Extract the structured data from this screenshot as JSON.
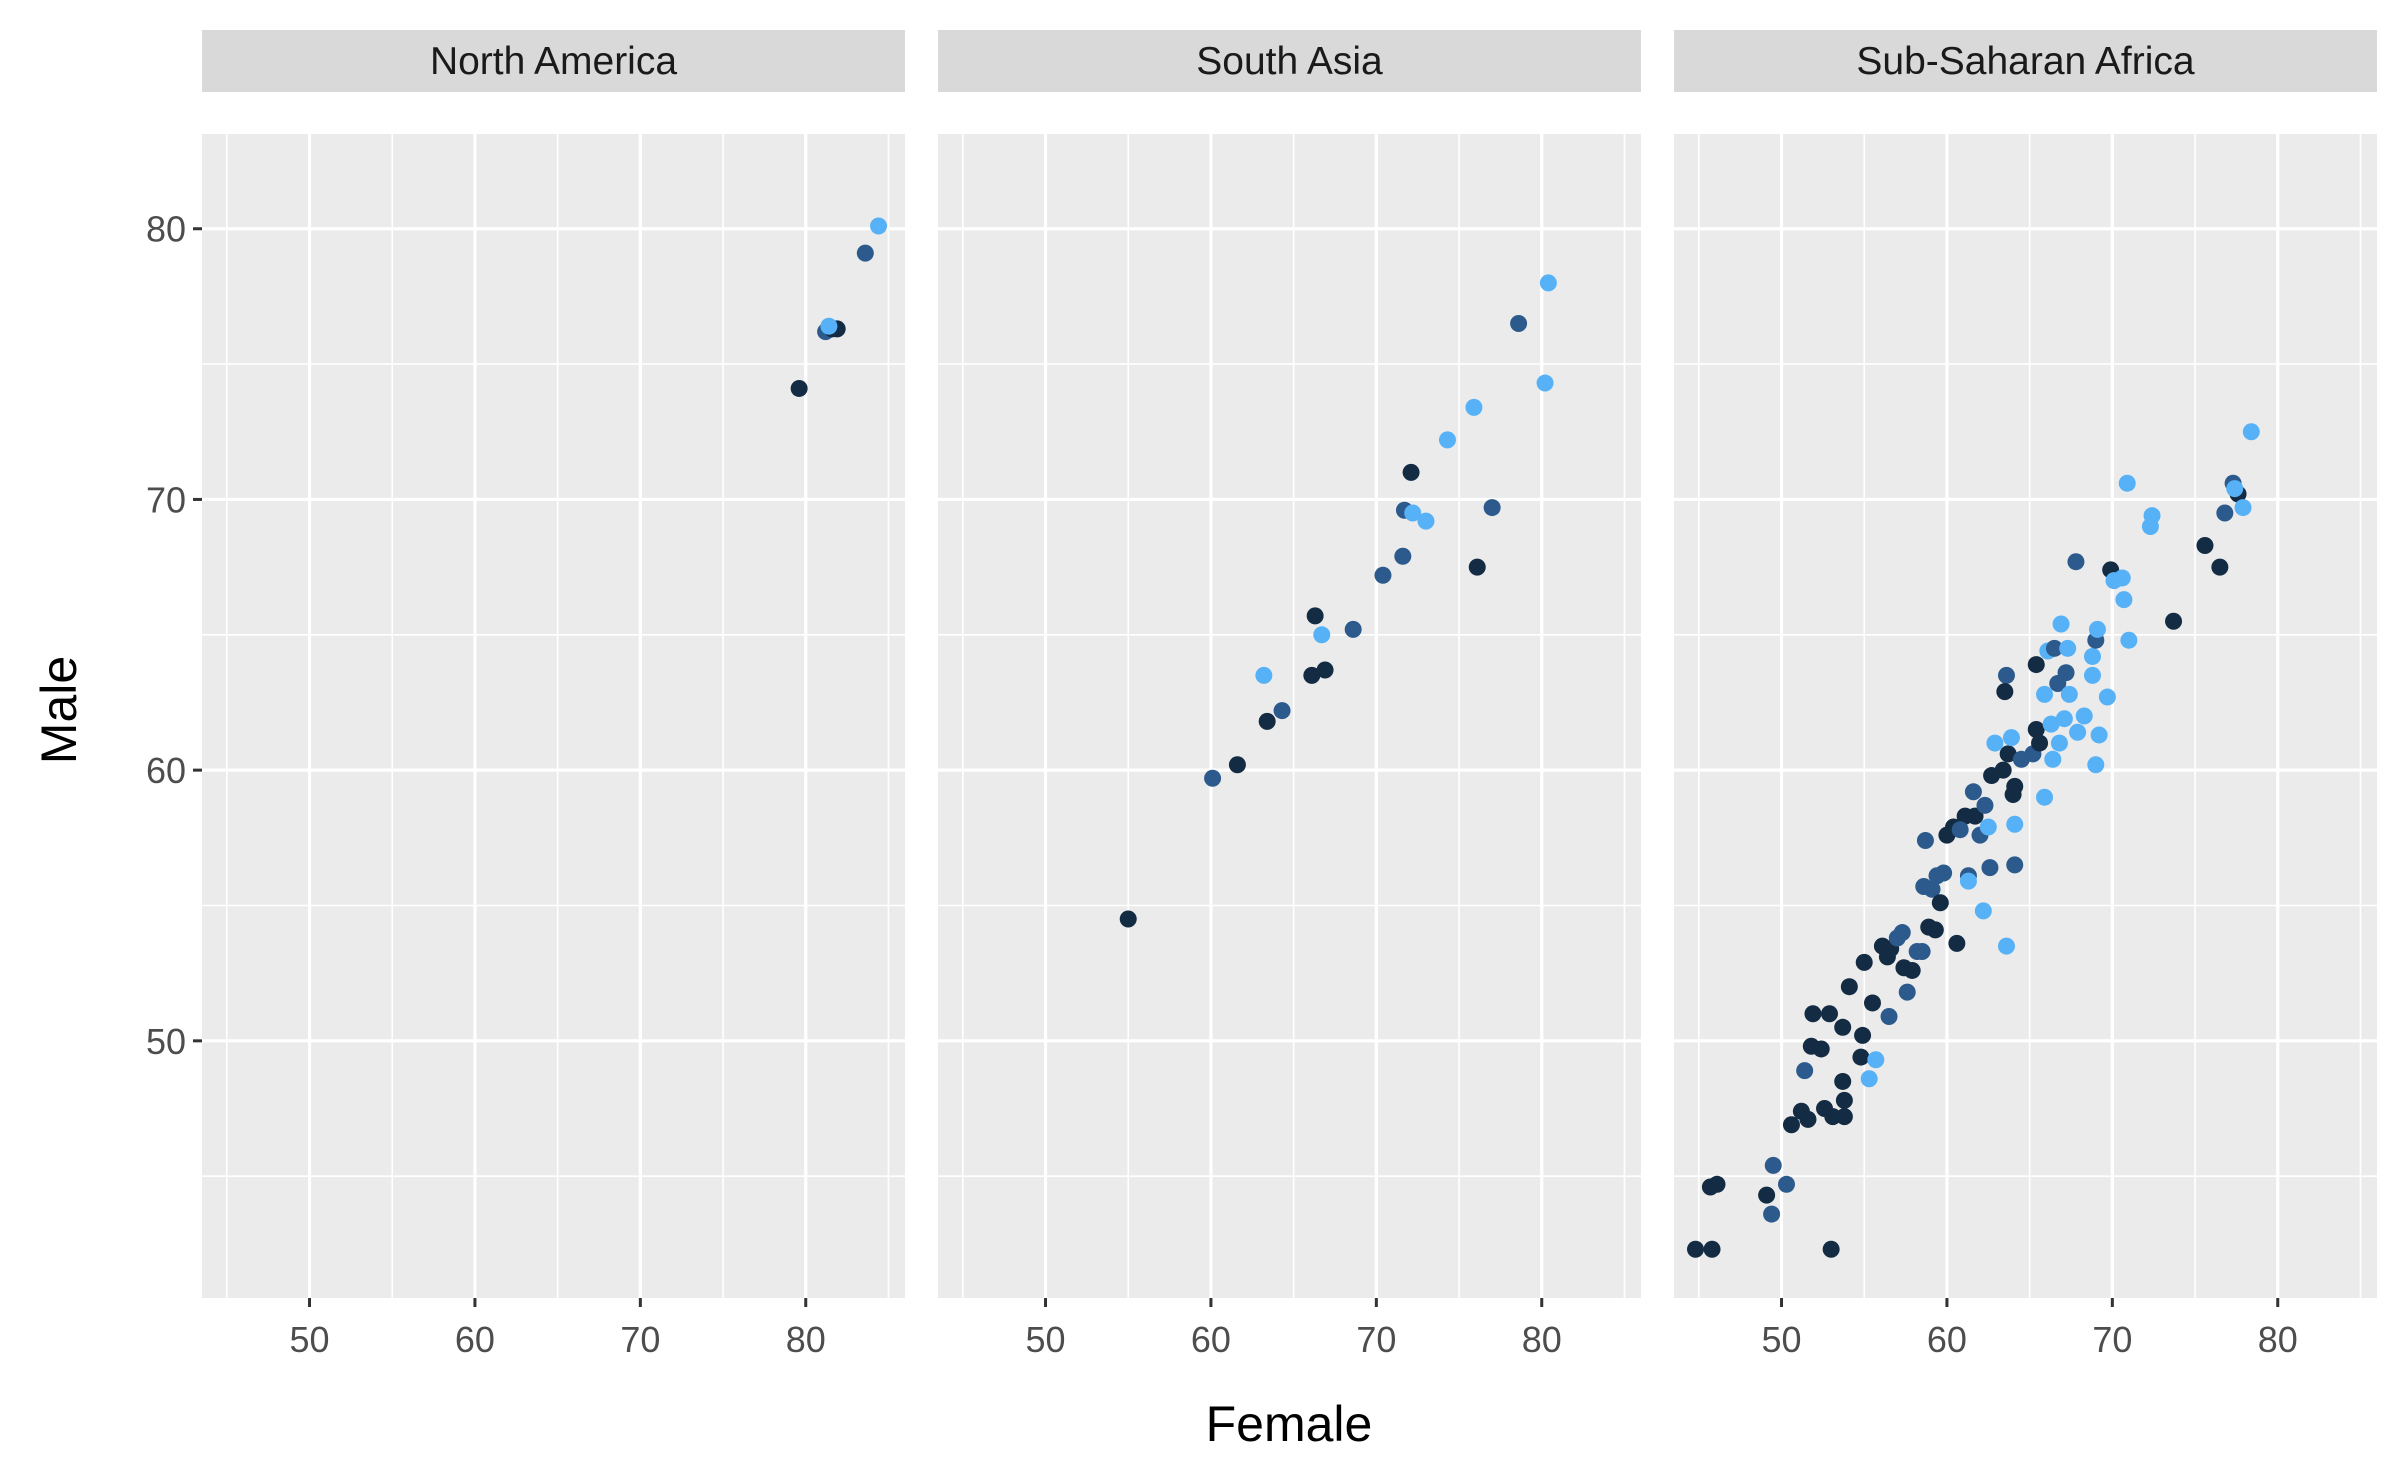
{
  "chart_data": {
    "type": "scatter",
    "xlabel": "Female",
    "ylabel": "Male",
    "xlim": [
      43.5,
      86
    ],
    "ylim": [
      40.5,
      83.5
    ],
    "x_ticks": [
      50,
      60,
      70,
      80
    ],
    "y_ticks": [
      50,
      60,
      70,
      80
    ],
    "grid": true,
    "legend": "none",
    "point_colors": [
      "#132b43",
      "#2c5a8c",
      "#56b1f7"
    ],
    "panels": [
      {
        "name": "North America",
        "points": [
          [
            79.6,
            74.1,
            0
          ],
          [
            81.2,
            76.2,
            1
          ],
          [
            81.6,
            76.3,
            0
          ],
          [
            81.9,
            76.3,
            0
          ],
          [
            81.4,
            76.4,
            2
          ],
          [
            83.6,
            79.1,
            1
          ],
          [
            84.4,
            80.1,
            2
          ]
        ]
      },
      {
        "name": "South Asia",
        "points": [
          [
            55.0,
            54.5,
            0
          ],
          [
            60.1,
            59.7,
            1
          ],
          [
            61.6,
            60.2,
            0
          ],
          [
            63.4,
            61.8,
            0
          ],
          [
            64.3,
            62.2,
            1
          ],
          [
            63.2,
            63.5,
            2
          ],
          [
            66.1,
            63.5,
            0
          ],
          [
            66.9,
            63.7,
            0
          ],
          [
            66.3,
            65.7,
            0
          ],
          [
            66.7,
            65.0,
            2
          ],
          [
            68.6,
            65.2,
            1
          ],
          [
            70.4,
            67.2,
            1
          ],
          [
            71.6,
            67.9,
            1
          ],
          [
            71.7,
            69.6,
            1
          ],
          [
            72.2,
            69.5,
            2
          ],
          [
            73.0,
            69.2,
            2
          ],
          [
            72.1,
            71.0,
            0
          ],
          [
            74.3,
            72.2,
            2
          ],
          [
            75.9,
            73.4,
            2
          ],
          [
            76.1,
            67.5,
            0
          ],
          [
            77.0,
            69.7,
            1
          ],
          [
            78.6,
            76.5,
            1
          ],
          [
            80.2,
            74.3,
            2
          ],
          [
            80.4,
            78.0,
            2
          ]
        ]
      },
      {
        "name": "Sub-Saharan Africa",
        "points": [
          [
            44.8,
            42.3,
            0
          ],
          [
            45.8,
            42.3,
            0
          ],
          [
            45.7,
            44.6,
            0
          ],
          [
            46.1,
            44.7,
            0
          ],
          [
            49.1,
            44.3,
            0
          ],
          [
            49.4,
            43.6,
            1
          ],
          [
            49.5,
            45.4,
            1
          ],
          [
            50.3,
            44.7,
            1
          ],
          [
            53.0,
            42.3,
            0
          ],
          [
            50.6,
            46.9,
            0
          ],
          [
            51.2,
            47.4,
            0
          ],
          [
            51.6,
            47.1,
            0
          ],
          [
            51.4,
            48.9,
            1
          ],
          [
            51.8,
            49.8,
            0
          ],
          [
            52.4,
            49.7,
            0
          ],
          [
            52.9,
            51.0,
            0
          ],
          [
            51.9,
            51.0,
            0
          ],
          [
            52.6,
            47.5,
            0
          ],
          [
            53.1,
            47.2,
            0
          ],
          [
            53.8,
            47.2,
            0
          ],
          [
            53.7,
            48.5,
            0
          ],
          [
            53.8,
            47.8,
            0
          ],
          [
            54.1,
            52.0,
            0
          ],
          [
            53.7,
            50.5,
            0
          ],
          [
            54.8,
            49.4,
            0
          ],
          [
            54.9,
            50.2,
            0
          ],
          [
            55.3,
            48.6,
            2
          ],
          [
            55.7,
            49.3,
            2
          ],
          [
            55.0,
            52.9,
            0
          ],
          [
            55.5,
            51.4,
            0
          ],
          [
            56.1,
            53.5,
            0
          ],
          [
            56.4,
            53.1,
            0
          ],
          [
            56.6,
            53.4,
            0
          ],
          [
            56.5,
            50.9,
            1
          ],
          [
            57.0,
            53.8,
            1
          ],
          [
            57.4,
            52.7,
            0
          ],
          [
            57.6,
            51.8,
            1
          ],
          [
            57.9,
            52.6,
            0
          ],
          [
            58.2,
            53.3,
            1
          ],
          [
            58.5,
            53.3,
            1
          ],
          [
            58.6,
            55.7,
            1
          ],
          [
            58.7,
            57.4,
            1
          ],
          [
            59.1,
            55.6,
            1
          ],
          [
            59.3,
            54.1,
            0
          ],
          [
            59.6,
            55.1,
            0
          ],
          [
            59.4,
            56.1,
            1
          ],
          [
            59.8,
            56.2,
            1
          ],
          [
            60.0,
            57.6,
            0
          ],
          [
            60.4,
            57.9,
            0
          ],
          [
            60.6,
            53.6,
            0
          ],
          [
            61.1,
            58.3,
            0
          ],
          [
            61.3,
            56.1,
            1
          ],
          [
            61.3,
            55.9,
            2
          ],
          [
            61.6,
            59.2,
            1
          ],
          [
            61.7,
            58.3,
            0
          ],
          [
            62.0,
            57.6,
            1
          ],
          [
            62.3,
            58.7,
            1
          ],
          [
            62.2,
            54.8,
            2
          ],
          [
            62.6,
            56.4,
            1
          ],
          [
            62.7,
            59.8,
            0
          ],
          [
            62.9,
            61.0,
            2
          ],
          [
            63.4,
            60.0,
            0
          ],
          [
            63.6,
            63.5,
            1
          ],
          [
            63.5,
            62.9,
            0
          ],
          [
            63.7,
            60.6,
            0
          ],
          [
            63.6,
            53.5,
            2
          ],
          [
            63.9,
            61.2,
            2
          ],
          [
            64.0,
            59.1,
            0
          ],
          [
            64.1,
            59.4,
            0
          ],
          [
            64.1,
            56.5,
            1
          ],
          [
            64.1,
            58.0,
            2
          ],
          [
            64.5,
            60.4,
            1
          ],
          [
            65.2,
            60.6,
            1
          ],
          [
            65.4,
            61.5,
            0
          ],
          [
            65.4,
            63.9,
            0
          ],
          [
            65.6,
            61.0,
            0
          ],
          [
            65.9,
            62.8,
            2
          ],
          [
            66.1,
            64.4,
            2
          ],
          [
            66.3,
            61.7,
            2
          ],
          [
            66.4,
            60.4,
            2
          ],
          [
            66.5,
            64.5,
            1
          ],
          [
            66.7,
            63.2,
            1
          ],
          [
            66.8,
            61.0,
            2
          ],
          [
            67.1,
            61.9,
            2
          ],
          [
            67.2,
            63.6,
            1
          ],
          [
            67.4,
            62.8,
            2
          ],
          [
            67.8,
            67.7,
            1
          ],
          [
            67.9,
            61.4,
            2
          ],
          [
            68.3,
            62.0,
            2
          ],
          [
            68.8,
            63.5,
            2
          ],
          [
            68.8,
            64.2,
            2
          ],
          [
            69.0,
            64.8,
            1
          ],
          [
            69.1,
            65.2,
            2
          ],
          [
            69.2,
            61.3,
            2
          ],
          [
            69.7,
            62.7,
            2
          ],
          [
            69.9,
            67.4,
            0
          ],
          [
            70.1,
            67.0,
            2
          ],
          [
            70.6,
            67.1,
            2
          ],
          [
            70.7,
            66.3,
            2
          ],
          [
            71.0,
            64.8,
            2
          ],
          [
            70.9,
            70.6,
            2
          ],
          [
            72.3,
            69.0,
            2
          ],
          [
            72.4,
            69.4,
            2
          ],
          [
            73.7,
            65.5,
            0
          ],
          [
            75.6,
            68.3,
            0
          ],
          [
            76.5,
            67.5,
            0
          ],
          [
            76.8,
            69.5,
            1
          ],
          [
            77.3,
            70.6,
            1
          ],
          [
            77.6,
            70.2,
            0
          ],
          [
            77.4,
            70.4,
            2
          ],
          [
            77.9,
            69.7,
            2
          ],
          [
            78.4,
            72.5,
            2
          ],
          [
            57.3,
            54.0,
            1
          ],
          [
            58.9,
            54.2,
            0
          ],
          [
            60.8,
            57.8,
            1
          ],
          [
            62.5,
            57.9,
            2
          ],
          [
            65.9,
            59.0,
            2
          ],
          [
            66.9,
            65.4,
            2
          ],
          [
            67.3,
            64.5,
            2
          ],
          [
            69.0,
            60.2,
            2
          ]
        ]
      }
    ]
  }
}
